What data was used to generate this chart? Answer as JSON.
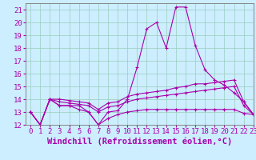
{
  "xlabel": "Windchill (Refroidissement éolien,°C)",
  "background_color": "#cceeff",
  "line_color": "#aa00aa",
  "xlim": [
    -0.5,
    23
  ],
  "ylim": [
    12,
    21.5
  ],
  "yticks": [
    12,
    13,
    14,
    15,
    16,
    17,
    18,
    19,
    20,
    21
  ],
  "xticks": [
    0,
    1,
    2,
    3,
    4,
    5,
    6,
    7,
    8,
    9,
    10,
    11,
    12,
    13,
    14,
    15,
    16,
    17,
    18,
    19,
    20,
    21,
    22,
    23
  ],
  "lines": [
    {
      "x": [
        0,
        1,
        2,
        3,
        4,
        5,
        6,
        7,
        8,
        9,
        10,
        11,
        12,
        13,
        14,
        15,
        16,
        17,
        18,
        19,
        20,
        21,
        22,
        23
      ],
      "y": [
        13.0,
        12.0,
        14.0,
        13.5,
        13.5,
        13.5,
        13.0,
        12.0,
        13.0,
        13.1,
        14.0,
        16.5,
        19.5,
        20.0,
        18.0,
        21.2,
        21.2,
        18.2,
        16.3,
        15.5,
        15.1,
        14.5,
        13.8,
        12.8
      ]
    },
    {
      "x": [
        0,
        1,
        2,
        3,
        4,
        5,
        6,
        7,
        8,
        9,
        10,
        11,
        12,
        13,
        14,
        15,
        16,
        17,
        18,
        19,
        20,
        21,
        22,
        23
      ],
      "y": [
        13.0,
        12.0,
        14.0,
        13.5,
        13.5,
        13.2,
        13.0,
        12.0,
        12.5,
        12.8,
        13.0,
        13.1,
        13.2,
        13.2,
        13.2,
        13.2,
        13.2,
        13.2,
        13.2,
        13.2,
        13.2,
        13.2,
        12.9,
        12.8
      ]
    },
    {
      "x": [
        0,
        1,
        2,
        3,
        4,
        5,
        6,
        7,
        8,
        9,
        10,
        11,
        12,
        13,
        14,
        15,
        16,
        17,
        18,
        19,
        20,
        21,
        22,
        23
      ],
      "y": [
        13.0,
        12.0,
        14.0,
        13.8,
        13.7,
        13.6,
        13.5,
        13.0,
        13.4,
        13.5,
        13.8,
        14.0,
        14.1,
        14.2,
        14.3,
        14.4,
        14.5,
        14.6,
        14.7,
        14.8,
        14.9,
        15.0,
        13.5,
        12.8
      ]
    },
    {
      "x": [
        0,
        1,
        2,
        3,
        4,
        5,
        6,
        7,
        8,
        9,
        10,
        11,
        12,
        13,
        14,
        15,
        16,
        17,
        18,
        19,
        20,
        21,
        22,
        23
      ],
      "y": [
        13.0,
        12.0,
        14.0,
        14.0,
        13.9,
        13.8,
        13.7,
        13.2,
        13.7,
        13.8,
        14.2,
        14.4,
        14.5,
        14.6,
        14.7,
        14.9,
        15.0,
        15.2,
        15.2,
        15.3,
        15.4,
        15.5,
        13.8,
        12.8
      ]
    }
  ],
  "grid_color": "#99ccbb",
  "tick_fontsize": 6.5,
  "xlabel_fontsize": 7.5
}
